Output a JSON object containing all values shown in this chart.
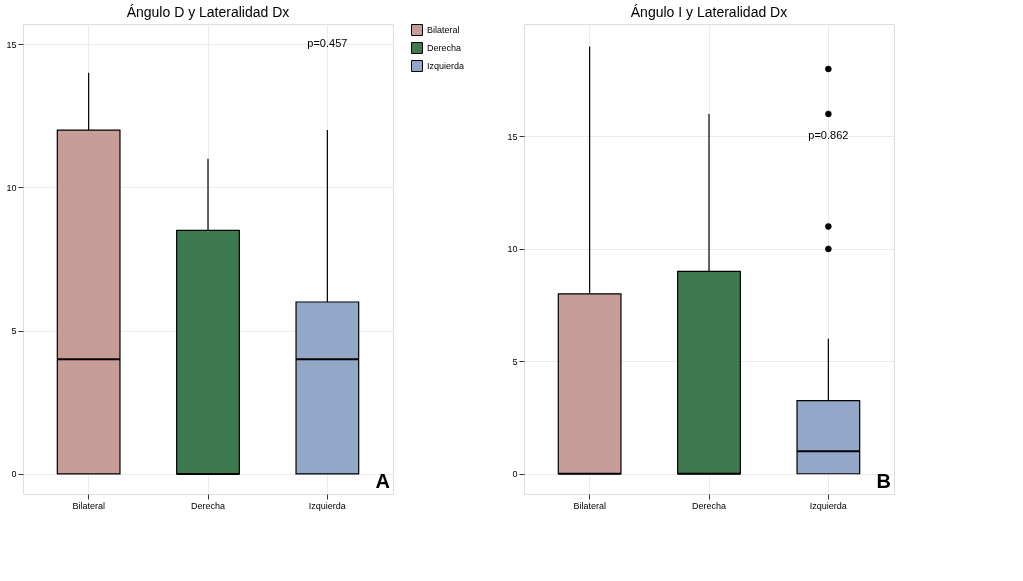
{
  "chart_data": [
    {
      "type": "box",
      "title": "Ángulo D y Lateralidad Dx",
      "categories": [
        "Bilateral",
        "Derecha",
        "Izquierda"
      ],
      "series": [
        {
          "name": "Bilateral",
          "color": "#c79d98",
          "boxes": [
            {
              "low": 0,
              "q1": 0,
              "median": 4,
              "q3": 12,
              "high": 14
            },
            null,
            null
          ]
        },
        {
          "name": "Derecha",
          "color": "#3e7a50",
          "boxes": [
            null,
            {
              "low": 0,
              "q1": 0,
              "median": 0,
              "q3": 8.5,
              "high": 11
            },
            null
          ]
        },
        {
          "name": "Izquierda",
          "color": "#93a8c9",
          "boxes": [
            null,
            null,
            {
              "low": 0,
              "q1": 0,
              "median": 4,
              "q3": 6,
              "high": 12
            }
          ]
        }
      ],
      "ylim": [
        -0.7,
        15.7
      ],
      "yticks": [
        0,
        5,
        10,
        15
      ],
      "grid": true,
      "legend": "right",
      "annotations": [
        "p=0.457",
        "A"
      ]
    },
    {
      "type": "box",
      "title": "Ángulo I y Lateralidad Dx",
      "categories": [
        "Bilateral",
        "Derecha",
        "Izquierda"
      ],
      "series": [
        {
          "color": "#c79d98",
          "boxes": [
            {
              "low": 0,
              "q1": 0,
              "median": 0,
              "q3": 8,
              "high": 19
            },
            null,
            null
          ]
        },
        {
          "color": "#3e7a50",
          "boxes": [
            null,
            {
              "low": 0,
              "q1": 0,
              "median": 0,
              "q3": 9,
              "high": 16
            },
            null
          ]
        },
        {
          "color": "#93a8c9",
          "boxes": [
            null,
            null,
            {
              "low": 0,
              "q1": 0,
              "median": 1,
              "q3": 3.25,
              "high": 6,
              "outliers": [
                10,
                11,
                16,
                18
              ]
            }
          ]
        }
      ],
      "ylim": [
        -0.9,
        20
      ],
      "yticks": [
        0,
        5,
        10,
        15
      ],
      "grid": true,
      "annotations": [
        "p=0.862",
        "B"
      ]
    }
  ]
}
